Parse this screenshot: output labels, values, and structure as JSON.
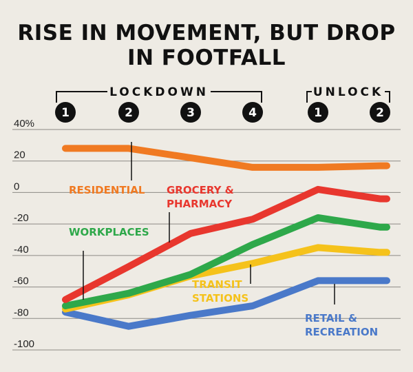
{
  "title_line1": "RISE IN MOVEMENT, BUT DROP",
  "title_line2": "IN FOOTFALL",
  "chart_data": {
    "type": "line",
    "title": "RISE IN MOVEMENT, BUT DROP IN FOOTFALL",
    "phases": [
      {
        "label": "LOCKDOWN",
        "steps": [
          "1",
          "2",
          "3",
          "4"
        ]
      },
      {
        "label": "UNLOCK",
        "steps": [
          "1",
          "2"
        ]
      }
    ],
    "x": [
      "Lockdown 1",
      "Lockdown 2",
      "Lockdown 3",
      "Lockdown 4",
      "Unlock 1",
      "Unlock 2"
    ],
    "x_points": [
      0,
      1,
      2,
      3,
      4,
      5
    ],
    "yticks": [
      40,
      20,
      0,
      -20,
      -40,
      -60,
      -80,
      -100
    ],
    "ytick_labels": [
      "40%",
      "20",
      "0",
      "-20",
      "-40",
      "-60",
      "-80",
      "-100"
    ],
    "ylim": [
      -100,
      40
    ],
    "grid": true,
    "series": [
      {
        "name": "RESIDENTIAL",
        "label_lines": [
          "RESIDENTIAL"
        ],
        "color": "#f07a22",
        "x": [
          0,
          1,
          2,
          3,
          4,
          5
        ],
        "values": [
          28,
          28,
          22,
          16,
          16,
          17
        ]
      },
      {
        "name": "RETAIL & RECREATION",
        "label_lines": [
          "RETAIL &",
          "RECREATION"
        ],
        "color": "#4a79c9",
        "x": [
          0,
          1,
          2,
          3,
          4,
          5
        ],
        "values": [
          -76,
          -85,
          -78,
          -72,
          -56,
          -56
        ]
      },
      {
        "name": "TRANSIT STATIONS",
        "label_lines": [
          "TRANSIT",
          "STATIONS"
        ],
        "color": "#f5c21b",
        "x": [
          0,
          1,
          2,
          3,
          4,
          5
        ],
        "values": [
          -74,
          -65,
          -53,
          -45,
          -35,
          -38
        ]
      },
      {
        "name": "WORKPLACES",
        "label_lines": [
          "WORKPLACES"
        ],
        "color": "#2ea84a",
        "x": [
          0,
          1,
          2,
          3,
          4,
          5
        ],
        "values": [
          -72,
          -64,
          -52,
          -33,
          -16,
          -22
        ]
      },
      {
        "name": "GROCERY & PHARMACY",
        "label_lines": [
          "GROCERY &",
          "PHARMACY"
        ],
        "color": "#e8372e",
        "x": [
          0,
          1,
          2,
          3,
          4,
          5
        ],
        "values": [
          -68,
          -47,
          -26,
          -17,
          2,
          -4
        ]
      }
    ]
  }
}
